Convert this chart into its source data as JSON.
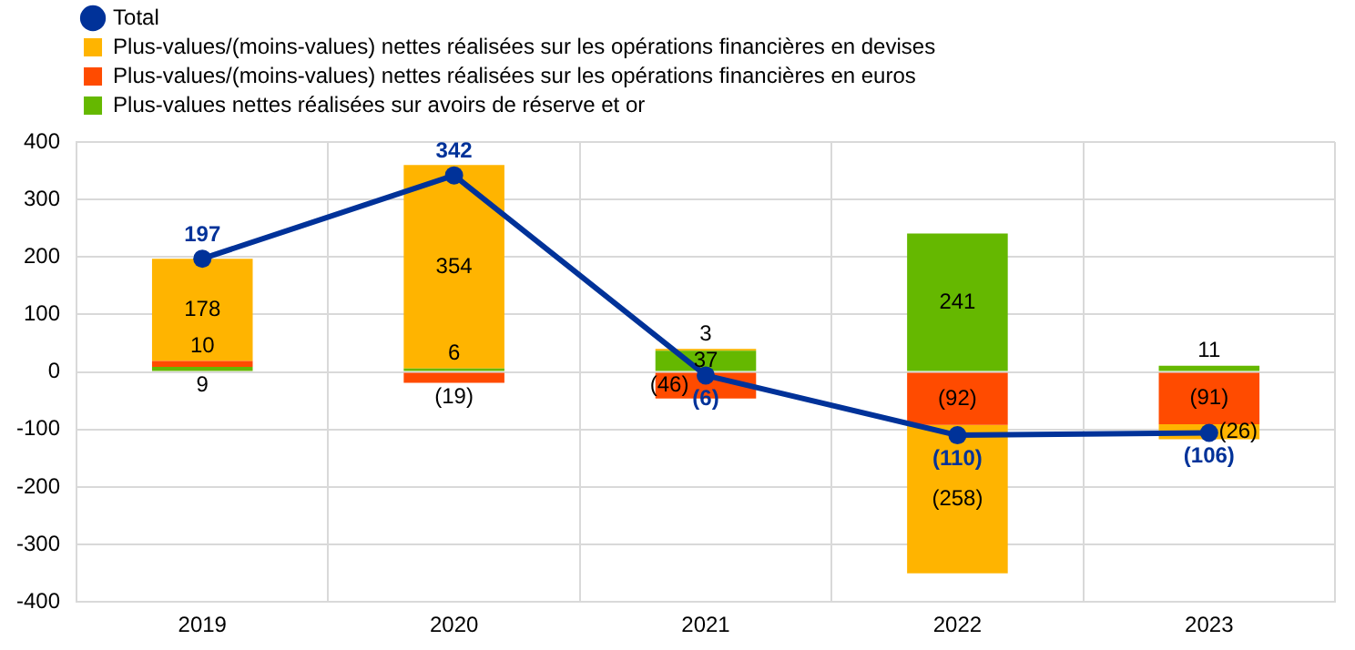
{
  "chart_data": {
    "type": "bar",
    "stacked": true,
    "categories": [
      "2019",
      "2020",
      "2021",
      "2022",
      "2023"
    ],
    "series": [
      {
        "name": "Plus-values nettes réalisées sur avoirs de réserve et or",
        "color": "#65b800",
        "values": [
          9,
          6,
          37,
          241,
          11
        ],
        "value_labels": [
          "9",
          "6",
          "37",
          "241",
          "11"
        ]
      },
      {
        "name": "Plus-values/(moins-values) nettes réalisées sur les opérations financières en euros",
        "color": "#ff4b00",
        "values": [
          10,
          -19,
          -46,
          -92,
          -91
        ],
        "value_labels": [
          "10",
          "(19)",
          "(46)",
          "(92)",
          "(91)"
        ]
      },
      {
        "name": "Plus-values/(moins-values) nettes réalisées sur les opérations financières en devises",
        "color": "#ffb400",
        "values": [
          178,
          354,
          3,
          -258,
          -26
        ],
        "value_labels": [
          "178",
          "354",
          "3",
          "(258)",
          "(26)"
        ]
      },
      {
        "name": "Total",
        "type": "line",
        "color": "#003299",
        "values": [
          197,
          342,
          -6,
          -110,
          -106
        ],
        "value_labels": [
          "197",
          "342",
          "(6)",
          "(110)",
          "(106)"
        ]
      }
    ],
    "ylim": [
      -400,
      400
    ],
    "yticks": [
      -400,
      -300,
      -200,
      -100,
      0,
      100,
      200,
      300,
      400
    ],
    "grid": true,
    "legend": "top left",
    "marker": "circle",
    "line_style": "solid"
  }
}
